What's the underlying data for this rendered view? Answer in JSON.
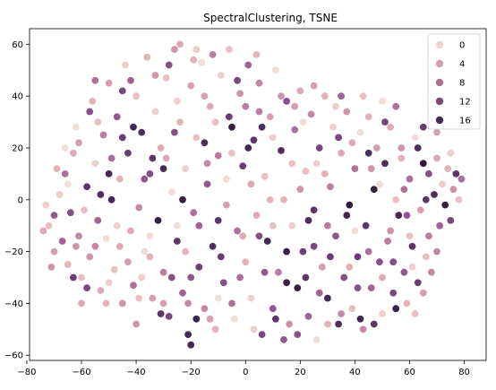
{
  "chart_data": {
    "type": "scatter",
    "title": "SpectralClustering, TSNE",
    "xlabel": "",
    "ylabel": "",
    "xlim": [
      -79,
      88
    ],
    "ylim": [
      -62,
      66
    ],
    "x_ticks": [
      -80,
      -60,
      -40,
      -20,
      0,
      20,
      40,
      60,
      80
    ],
    "y_ticks": [
      -60,
      -40,
      -20,
      0,
      20,
      40,
      60
    ],
    "grid": false,
    "legend_position": "top-right",
    "hue_range": [
      0,
      19
    ],
    "legend": [
      {
        "label": "0",
        "hue": 0,
        "color": "#efd4cf"
      },
      {
        "label": "4",
        "hue": 4,
        "color": "#d49fae"
      },
      {
        "label": "8",
        "hue": 8,
        "color": "#ae6f95"
      },
      {
        "label": "12",
        "hue": 12,
        "color": "#7e4a7a"
      },
      {
        "label": "16",
        "hue": 16,
        "color": "#4b2955"
      }
    ],
    "color_scale": [
      "#f2dcd7",
      "#e5b6b9",
      "#d29baf",
      "#b97aa0",
      "#965990",
      "#70427a",
      "#4c2b5a",
      "#2d1a3c"
    ],
    "points": [
      [
        -72,
        -10,
        2
      ],
      [
        -70,
        -20,
        5
      ],
      [
        -68,
        2,
        1
      ],
      [
        -66,
        10,
        9
      ],
      [
        -65,
        -25,
        3
      ],
      [
        -64,
        -5,
        12
      ],
      [
        -63,
        18,
        4
      ],
      [
        -62,
        28,
        0
      ],
      [
        -61,
        -14,
        7
      ],
      [
        -60,
        -30,
        2
      ],
      [
        -58,
        5,
        15
      ],
      [
        -57,
        -22,
        6
      ],
      [
        -56,
        38,
        3
      ],
      [
        -55,
        14,
        1
      ],
      [
        -54,
        -8,
        10
      ],
      [
        -53,
        -35,
        4
      ],
      [
        -52,
        25,
        8
      ],
      [
        -51,
        -15,
        0
      ],
      [
        -50,
        45,
        5
      ],
      [
        -49,
        0,
        17
      ],
      [
        -48,
        -27,
        2
      ],
      [
        -47,
        32,
        11
      ],
      [
        -46,
        8,
        3
      ],
      [
        -45,
        -40,
        6
      ],
      [
        -44,
        52,
        1
      ],
      [
        -43,
        18,
        14
      ],
      [
        -42,
        -12,
        4
      ],
      [
        -41,
        -33,
        9
      ],
      [
        -40,
        40,
        2
      ],
      [
        -39,
        -3,
        7
      ],
      [
        -38,
        26,
        16
      ],
      [
        -37,
        -20,
        0
      ],
      [
        -36,
        55,
        3
      ],
      [
        -35,
        10,
        12
      ],
      [
        -34,
        -38,
        5
      ],
      [
        -33,
        34,
        1
      ],
      [
        -32,
        -8,
        18
      ],
      [
        -31,
        20,
        4
      ],
      [
        -30,
        -28,
        8
      ],
      [
        -29,
        47,
        2
      ],
      [
        -28,
        -45,
        13
      ],
      [
        -27,
        3,
        0
      ],
      [
        -26,
        58,
        6
      ],
      [
        -25,
        -16,
        15
      ],
      [
        -24,
        30,
        3
      ],
      [
        -23,
        -36,
        10
      ],
      [
        -22,
        12,
        1
      ],
      [
        -21,
        -52,
        17
      ],
      [
        -20,
        44,
        5
      ],
      [
        -19,
        -5,
        9
      ],
      [
        -18,
        24,
        2
      ],
      [
        -17,
        -26,
        14
      ],
      [
        -16,
        53,
        0
      ],
      [
        -15,
        -42,
        7
      ],
      [
        -14,
        6,
        11
      ],
      [
        -13,
        36,
        4
      ],
      [
        -12,
        -18,
        16
      ],
      [
        -11,
        -50,
        3
      ],
      [
        -10,
        17,
        8
      ],
      [
        -9,
        48,
        1
      ],
      [
        -8,
        -32,
        12
      ],
      [
        -7,
        -2,
        5
      ],
      [
        -6,
        58,
        2
      ],
      [
        -5,
        28,
        18
      ],
      [
        -4,
        -46,
        0
      ],
      [
        -3,
        -12,
        9
      ],
      [
        -2,
        41,
        6
      ],
      [
        -1,
        13,
        14
      ],
      [
        0,
        -24,
        3
      ],
      [
        1,
        52,
        10
      ],
      [
        2,
        -38,
        1
      ],
      [
        3,
        23,
        15
      ],
      [
        4,
        -6,
        4
      ],
      [
        5,
        45,
        7
      ],
      [
        6,
        -52,
        13
      ],
      [
        7,
        9,
        2
      ],
      [
        8,
        -16,
        17
      ],
      [
        9,
        32,
        5
      ],
      [
        10,
        -42,
        11
      ],
      [
        11,
        50,
        0
      ],
      [
        12,
        -28,
        8
      ],
      [
        13,
        19,
        16
      ],
      [
        14,
        0,
        3
      ],
      [
        15,
        38,
        12
      ],
      [
        16,
        -48,
        6
      ],
      [
        17,
        -10,
        1
      ],
      [
        18,
        27,
        9
      ],
      [
        19,
        -34,
        18
      ],
      [
        20,
        42,
        4
      ],
      [
        21,
        -20,
        14
      ],
      [
        22,
        11,
        2
      ],
      [
        23,
        -45,
        10
      ],
      [
        24,
        33,
        7
      ],
      [
        25,
        -4,
        15
      ],
      [
        26,
        -54,
        0
      ],
      [
        27,
        20,
        13
      ],
      [
        28,
        -26,
        5
      ],
      [
        29,
        40,
        3
      ],
      [
        30,
        -38,
        17
      ],
      [
        31,
        5,
        8
      ],
      [
        32,
        28,
        1
      ],
      [
        33,
        -14,
        11
      ],
      [
        34,
        -48,
        16
      ],
      [
        35,
        18,
        4
      ],
      [
        36,
        -30,
        12
      ],
      [
        37,
        34,
        6
      ],
      [
        38,
        -2,
        19
      ],
      [
        39,
        -42,
        2
      ],
      [
        40,
        12,
        9
      ],
      [
        41,
        -22,
        14
      ],
      [
        42,
        26,
        0
      ],
      [
        43,
        -50,
        7
      ],
      [
        44,
        -10,
        15
      ],
      [
        45,
        32,
        3
      ],
      [
        46,
        -34,
        10
      ],
      [
        47,
        4,
        18
      ],
      [
        48,
        20,
        5
      ],
      [
        49,
        -24,
        12
      ],
      [
        50,
        -44,
        1
      ],
      [
        51,
        14,
        16
      ],
      [
        52,
        -16,
        8
      ],
      [
        53,
        28,
        4
      ],
      [
        54,
        -36,
        13
      ],
      [
        55,
        0,
        2
      ],
      [
        56,
        -6,
        17
      ],
      [
        57,
        20,
        6
      ],
      [
        58,
        -28,
        11
      ],
      [
        59,
        -40,
        3
      ],
      [
        60,
        8,
        9
      ],
      [
        61,
        -18,
        15
      ],
      [
        62,
        24,
        0
      ],
      [
        63,
        -32,
        14
      ],
      [
        64,
        -4,
        5
      ],
      [
        65,
        14,
        19
      ],
      [
        66,
        -22,
        2
      ],
      [
        67,
        10,
        12
      ],
      [
        68,
        -28,
        7
      ],
      [
        69,
        2,
        16
      ],
      [
        70,
        16,
        4
      ],
      [
        71,
        -10,
        10
      ],
      [
        72,
        6,
        1
      ],
      [
        73,
        -2,
        18
      ],
      [
        74,
        12,
        3
      ],
      [
        75,
        -8,
        13
      ],
      [
        76,
        4,
        6
      ],
      [
        77,
        10,
        15
      ],
      [
        78,
        0,
        2
      ],
      [
        79,
        8,
        9
      ],
      [
        -74,
        -12,
        4
      ],
      [
        -73,
        -2,
        1
      ],
      [
        -71,
        -26,
        6
      ],
      [
        -69,
        12,
        3
      ],
      [
        -67,
        -16,
        10
      ],
      [
        -65,
        6,
        0
      ],
      [
        -63,
        -30,
        14
      ],
      [
        -61,
        22,
        5
      ],
      [
        -59,
        -4,
        2
      ],
      [
        -57,
        34,
        12
      ],
      [
        -55,
        -18,
        7
      ],
      [
        -53,
        2,
        16
      ],
      [
        -51,
        -40,
        3
      ],
      [
        -49,
        16,
        9
      ],
      [
        -47,
        -10,
        1
      ],
      [
        -45,
        42,
        13
      ],
      [
        -43,
        -24,
        5
      ],
      [
        -41,
        28,
        17
      ],
      [
        -39,
        -38,
        2
      ],
      [
        -37,
        8,
        11
      ],
      [
        -35,
        -14,
        0
      ],
      [
        -33,
        48,
        6
      ],
      [
        -31,
        -44,
        15
      ],
      [
        -29,
        16,
        4
      ],
      [
        -27,
        -30,
        12
      ],
      [
        -25,
        38,
        1
      ],
      [
        -23,
        0,
        18
      ],
      [
        -21,
        -40,
        7
      ],
      [
        -19,
        54,
        3
      ],
      [
        -17,
        -10,
        10
      ],
      [
        -15,
        22,
        16
      ],
      [
        -13,
        -46,
        5
      ],
      [
        -11,
        30,
        2
      ],
      [
        -9,
        -22,
        14
      ],
      [
        -7,
        8,
        0
      ],
      [
        -5,
        -40,
        9
      ],
      [
        -3,
        46,
        13
      ],
      [
        -1,
        -14,
        4
      ],
      [
        1,
        20,
        17
      ],
      [
        3,
        -50,
        1
      ],
      [
        5,
        34,
        8
      ],
      [
        7,
        -28,
        11
      ],
      [
        9,
        0,
        3
      ],
      [
        11,
        -46,
        15
      ],
      [
        13,
        40,
        6
      ],
      [
        15,
        -20,
        18
      ],
      [
        17,
        14,
        2
      ],
      [
        19,
        -52,
        12
      ],
      [
        21,
        30,
        0
      ],
      [
        23,
        -8,
        16
      ],
      [
        25,
        44,
        5
      ],
      [
        27,
        -36,
        10
      ],
      [
        29,
        10,
        3
      ],
      [
        31,
        -22,
        14
      ],
      [
        33,
        36,
        1
      ],
      [
        35,
        -44,
        7
      ],
      [
        37,
        -6,
        17
      ],
      [
        39,
        22,
        4
      ],
      [
        41,
        -34,
        12
      ],
      [
        43,
        40,
        2
      ],
      [
        45,
        -20,
        9
      ],
      [
        47,
        -48,
        15
      ],
      [
        49,
        6,
        0
      ],
      [
        51,
        30,
        13
      ],
      [
        53,
        -12,
        6
      ],
      [
        55,
        -42,
        18
      ],
      [
        57,
        16,
        3
      ],
      [
        59,
        -6,
        11
      ],
      [
        61,
        -26,
        1
      ],
      [
        63,
        20,
        16
      ],
      [
        65,
        -36,
        5
      ],
      [
        67,
        -14,
        8
      ],
      [
        -60,
        -40,
        4
      ],
      [
        -55,
        46,
        9
      ],
      [
        -50,
        -32,
        1
      ],
      [
        -45,
        24,
        14
      ],
      [
        -40,
        -48,
        6
      ],
      [
        -35,
        -22,
        3
      ],
      [
        -30,
        12,
        17
      ],
      [
        -25,
        -10,
        0
      ],
      [
        -20,
        -30,
        11
      ],
      [
        -15,
        40,
        5
      ],
      [
        -10,
        -8,
        15
      ],
      [
        -5,
        18,
        2
      ],
      [
        0,
        36,
        8
      ],
      [
        5,
        -14,
        12
      ],
      [
        10,
        24,
        1
      ],
      [
        15,
        -32,
        18
      ],
      [
        20,
        4,
        6
      ],
      [
        25,
        -18,
        13
      ],
      [
        30,
        -48,
        3
      ],
      [
        35,
        40,
        10
      ],
      [
        40,
        -12,
        0
      ],
      [
        45,
        18,
        16
      ],
      [
        50,
        -30,
        4
      ],
      [
        55,
        36,
        9
      ],
      [
        60,
        -14,
        2
      ],
      [
        65,
        28,
        14
      ],
      [
        70,
        -20,
        7
      ],
      [
        75,
        18,
        1
      ],
      [
        -70,
        -6,
        11
      ],
      [
        -66,
        20,
        0
      ],
      [
        -62,
        -18,
        6
      ],
      [
        -58,
        -34,
        13
      ],
      [
        -54,
        30,
        2
      ],
      [
        -50,
        10,
        17
      ],
      [
        -46,
        -18,
        4
      ],
      [
        -42,
        46,
        10
      ],
      [
        -38,
        -30,
        1
      ],
      [
        -34,
        16,
        15
      ],
      [
        -30,
        -40,
        5
      ],
      [
        -26,
        26,
        12
      ],
      [
        -22,
        -20,
        3
      ],
      [
        -18,
        -46,
        18
      ],
      [
        -14,
        14,
        7
      ],
      [
        -10,
        -38,
        0
      ],
      [
        -6,
        32,
        14
      ],
      [
        -2,
        -30,
        9
      ],
      [
        2,
        6,
        4
      ],
      [
        6,
        28,
        16
      ],
      [
        10,
        -10,
        2
      ],
      [
        14,
        -54,
        11
      ],
      [
        18,
        36,
        5
      ],
      [
        22,
        -30,
        15
      ],
      [
        26,
        14,
        1
      ],
      [
        30,
        -10,
        8
      ],
      [
        34,
        24,
        13
      ],
      [
        38,
        -26,
        3
      ],
      [
        42,
        -46,
        17
      ],
      [
        46,
        12,
        6
      ],
      [
        50,
        38,
        0
      ],
      [
        54,
        -24,
        12
      ],
      [
        58,
        4,
        9
      ],
      [
        62,
        -44,
        2
      ],
      [
        66,
        0,
        15
      ],
      [
        70,
        26,
        5
      ],
      [
        -24,
        60,
        4
      ],
      [
        -18,
        58,
        1
      ],
      [
        -12,
        56,
        8
      ],
      [
        -28,
        52,
        12
      ],
      [
        4,
        56,
        3
      ],
      [
        -20,
        -56,
        17
      ]
    ]
  }
}
